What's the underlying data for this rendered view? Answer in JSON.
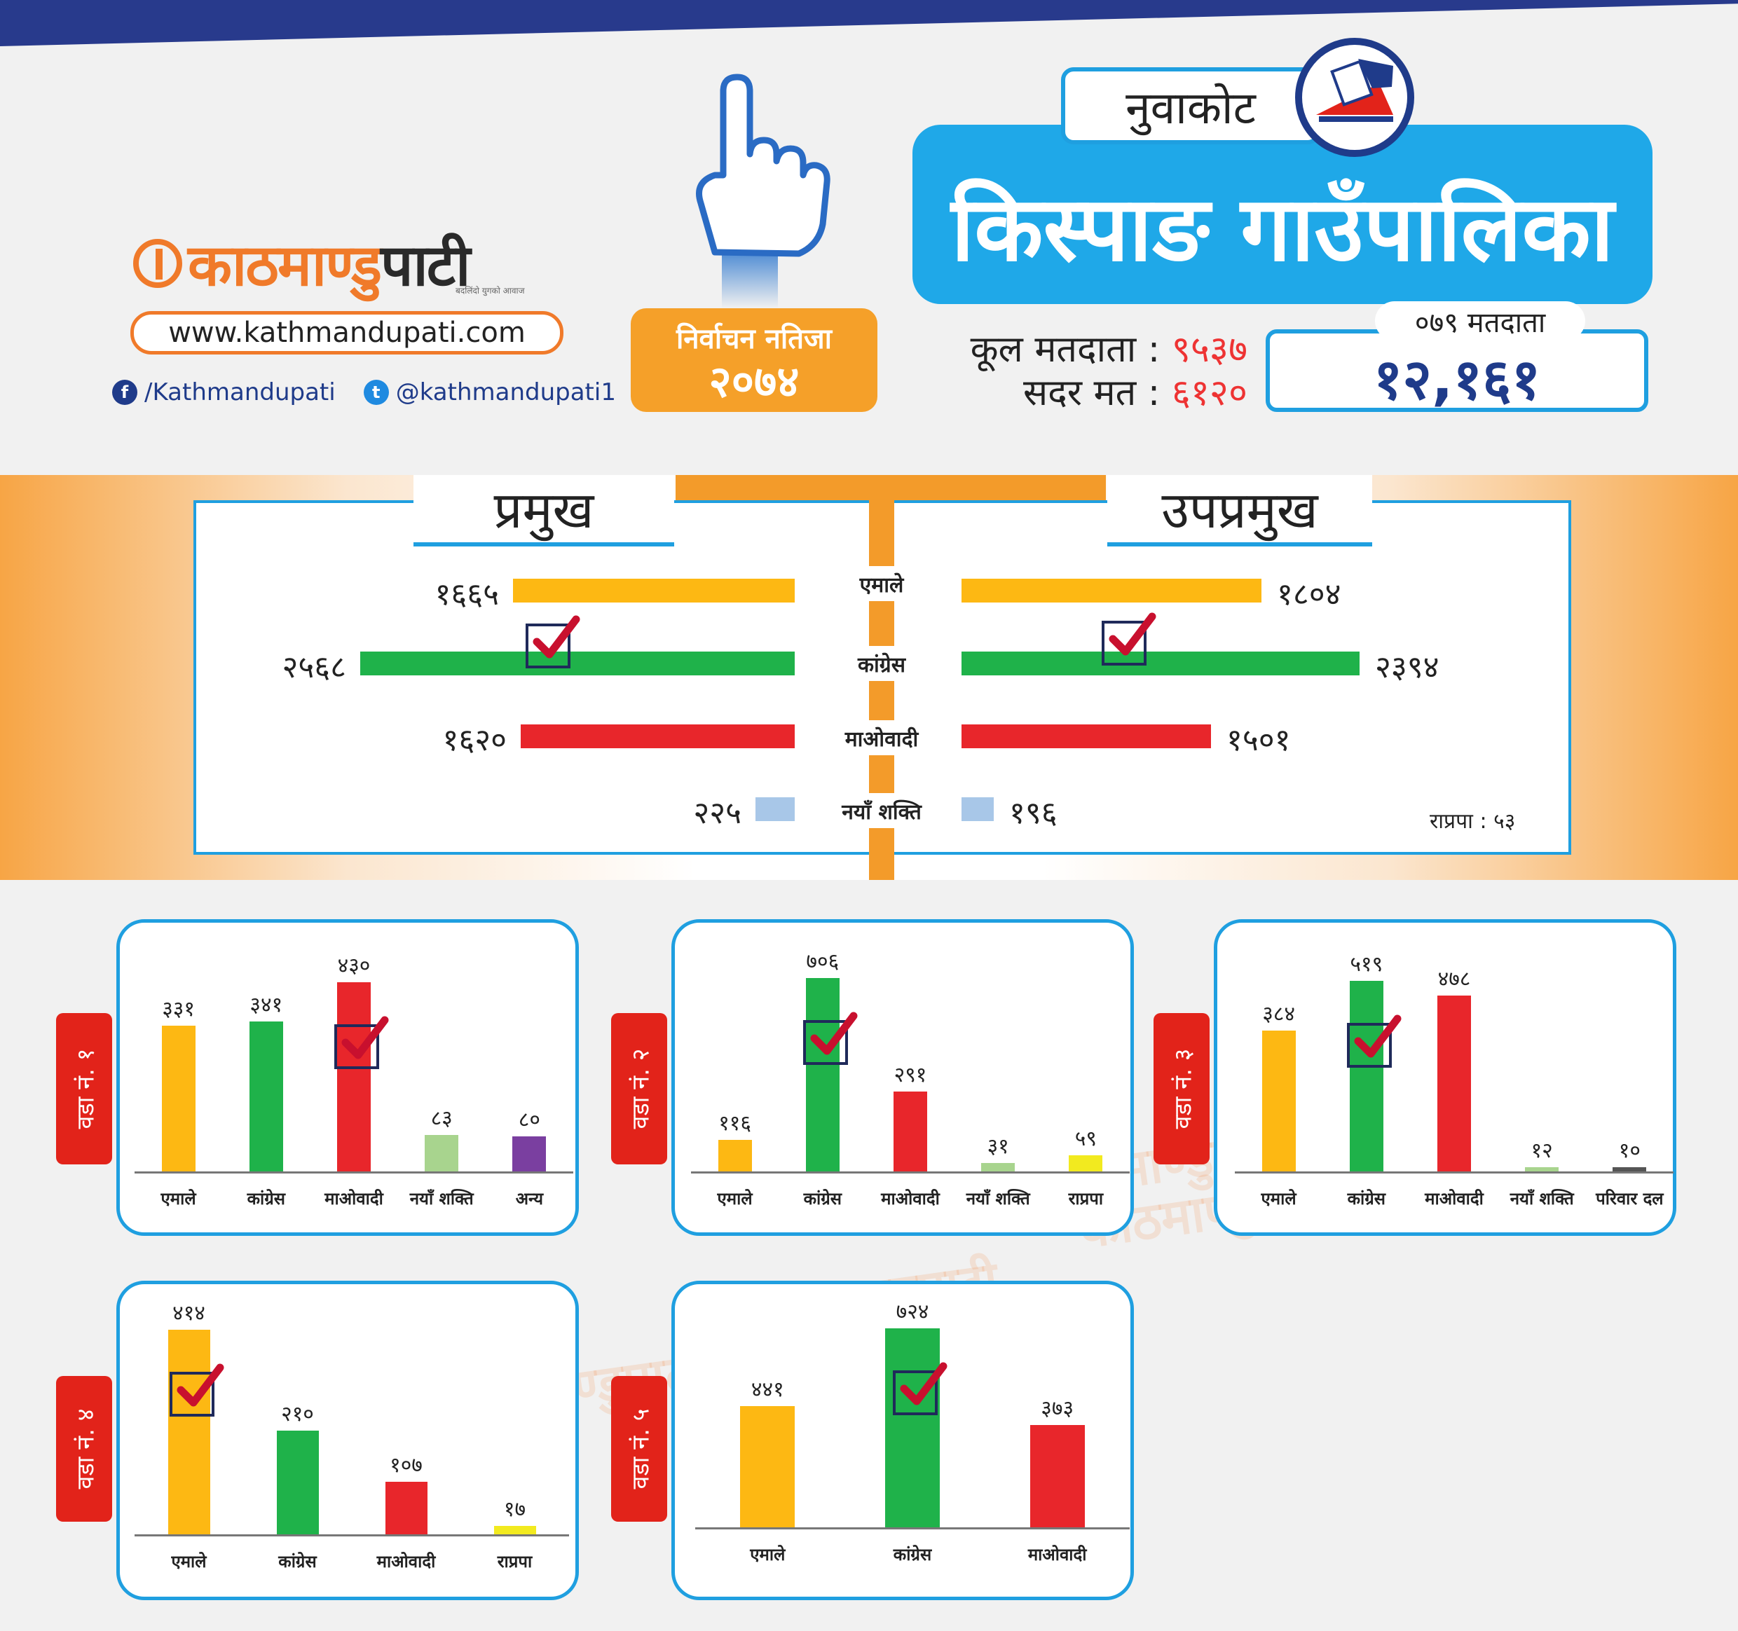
{
  "header": {
    "logo_a": "काठमाण्डु",
    "logo_b": "पाटी",
    "tagline": "बदलिंदो युगको आवाज",
    "url": "www.kathmandupati.com",
    "facebook": "/Kathmandupati",
    "twitter": "@kathmandupati1",
    "result_line1": "निर्वाचन नतिजा",
    "result_line2": "२०७४",
    "district": "नुवाकोट",
    "palika": "किस्पाङ गाउँपालिका",
    "total_voters_label": "कूल मतदाता :",
    "total_voters": "९५३७",
    "valid_votes_label": "सदर मत :",
    "valid_votes": "६१२०",
    "voters_079_label": "०७९ मतदाता",
    "voters_079": "१२,१६१"
  },
  "colors": {
    "uml": "#fdb813",
    "congress": "#1fb24a",
    "maoist": "#e8262b",
    "naya_shakti": "#a8c7e8",
    "rpp": "#f2ea1f",
    "other": "#7a3fa0",
    "accent_blue": "#1f9fe0",
    "orange": "#f39b2a"
  },
  "chart_data": [
    {
      "type": "bar",
      "title": "प्रमुख",
      "categories": [
        "एमाले",
        "कांग्रेस",
        "माओवादी",
        "नयाँ शक्ति"
      ],
      "values": [
        1665,
        2568,
        1620,
        225
      ],
      "value_labels": [
        "१६६५",
        "२५६८",
        "१६२०",
        "२२५"
      ],
      "winner": "कांग्रेस"
    },
    {
      "type": "bar",
      "title": "उपप्रमुख",
      "categories": [
        "एमाले",
        "कांग्रेस",
        "माओवादी",
        "नयाँ शक्ति"
      ],
      "values": [
        1804,
        2394,
        1501,
        196
      ],
      "value_labels": [
        "१८०४",
        "२३९४",
        "१५०१",
        "१९६"
      ],
      "winner": "कांग्रेस",
      "note": "राप्रपा : ५३"
    },
    {
      "type": "bar",
      "title": "वडा नं. १",
      "categories": [
        "एमाले",
        "कांग्रेस",
        "माओवादी",
        "नयाँ शक्ति",
        "अन्य"
      ],
      "values": [
        331,
        341,
        430,
        83,
        80
      ],
      "value_labels": [
        "३३१",
        "३४१",
        "४३०",
        "८३",
        "८०"
      ],
      "bar_colors": [
        "#fdb813",
        "#1fb24a",
        "#e8262b",
        "#a8d48e",
        "#7a3fa0"
      ],
      "winner": "माओवादी"
    },
    {
      "type": "bar",
      "title": "वडा नं. २",
      "categories": [
        "एमाले",
        "कांग्रेस",
        "माओवादी",
        "नयाँ शक्ति",
        "राप्रपा"
      ],
      "values": [
        116,
        706,
        291,
        31,
        59
      ],
      "value_labels": [
        "११६",
        "७०६",
        "२९१",
        "३१",
        "५९"
      ],
      "bar_colors": [
        "#fdb813",
        "#1fb24a",
        "#e8262b",
        "#a8d48e",
        "#f2ea1f"
      ],
      "winner": "कांग्रेस"
    },
    {
      "type": "bar",
      "title": "वडा नं. ३",
      "categories": [
        "एमाले",
        "कांग्रेस",
        "माओवादी",
        "नयाँ शक्ति",
        "परिवार दल"
      ],
      "values": [
        384,
        519,
        478,
        12,
        10
      ],
      "value_labels": [
        "३८४",
        "५१९",
        "४७८",
        "१२",
        "१०"
      ],
      "bar_colors": [
        "#fdb813",
        "#1fb24a",
        "#e8262b",
        "#a8d48e",
        "#555555"
      ],
      "winner": "कांग्रेस"
    },
    {
      "type": "bar",
      "title": "वडा नं. ४",
      "categories": [
        "एमाले",
        "कांग्रेस",
        "माओवादी",
        "राप्रपा"
      ],
      "values": [
        414,
        210,
        107,
        17
      ],
      "value_labels": [
        "४१४",
        "२१०",
        "१०७",
        "१७"
      ],
      "bar_colors": [
        "#fdb813",
        "#1fb24a",
        "#e8262b",
        "#f2ea1f"
      ],
      "winner": "एमाले"
    },
    {
      "type": "bar",
      "title": "वडा नं. ५",
      "categories": [
        "एमाले",
        "कांग्रेस",
        "माओवादी"
      ],
      "values": [
        441,
        724,
        373
      ],
      "value_labels": [
        "४४१",
        "७२४",
        "३७३"
      ],
      "bar_colors": [
        "#fdb813",
        "#1fb24a",
        "#e8262b"
      ],
      "winner": "कांग्रेस"
    }
  ]
}
